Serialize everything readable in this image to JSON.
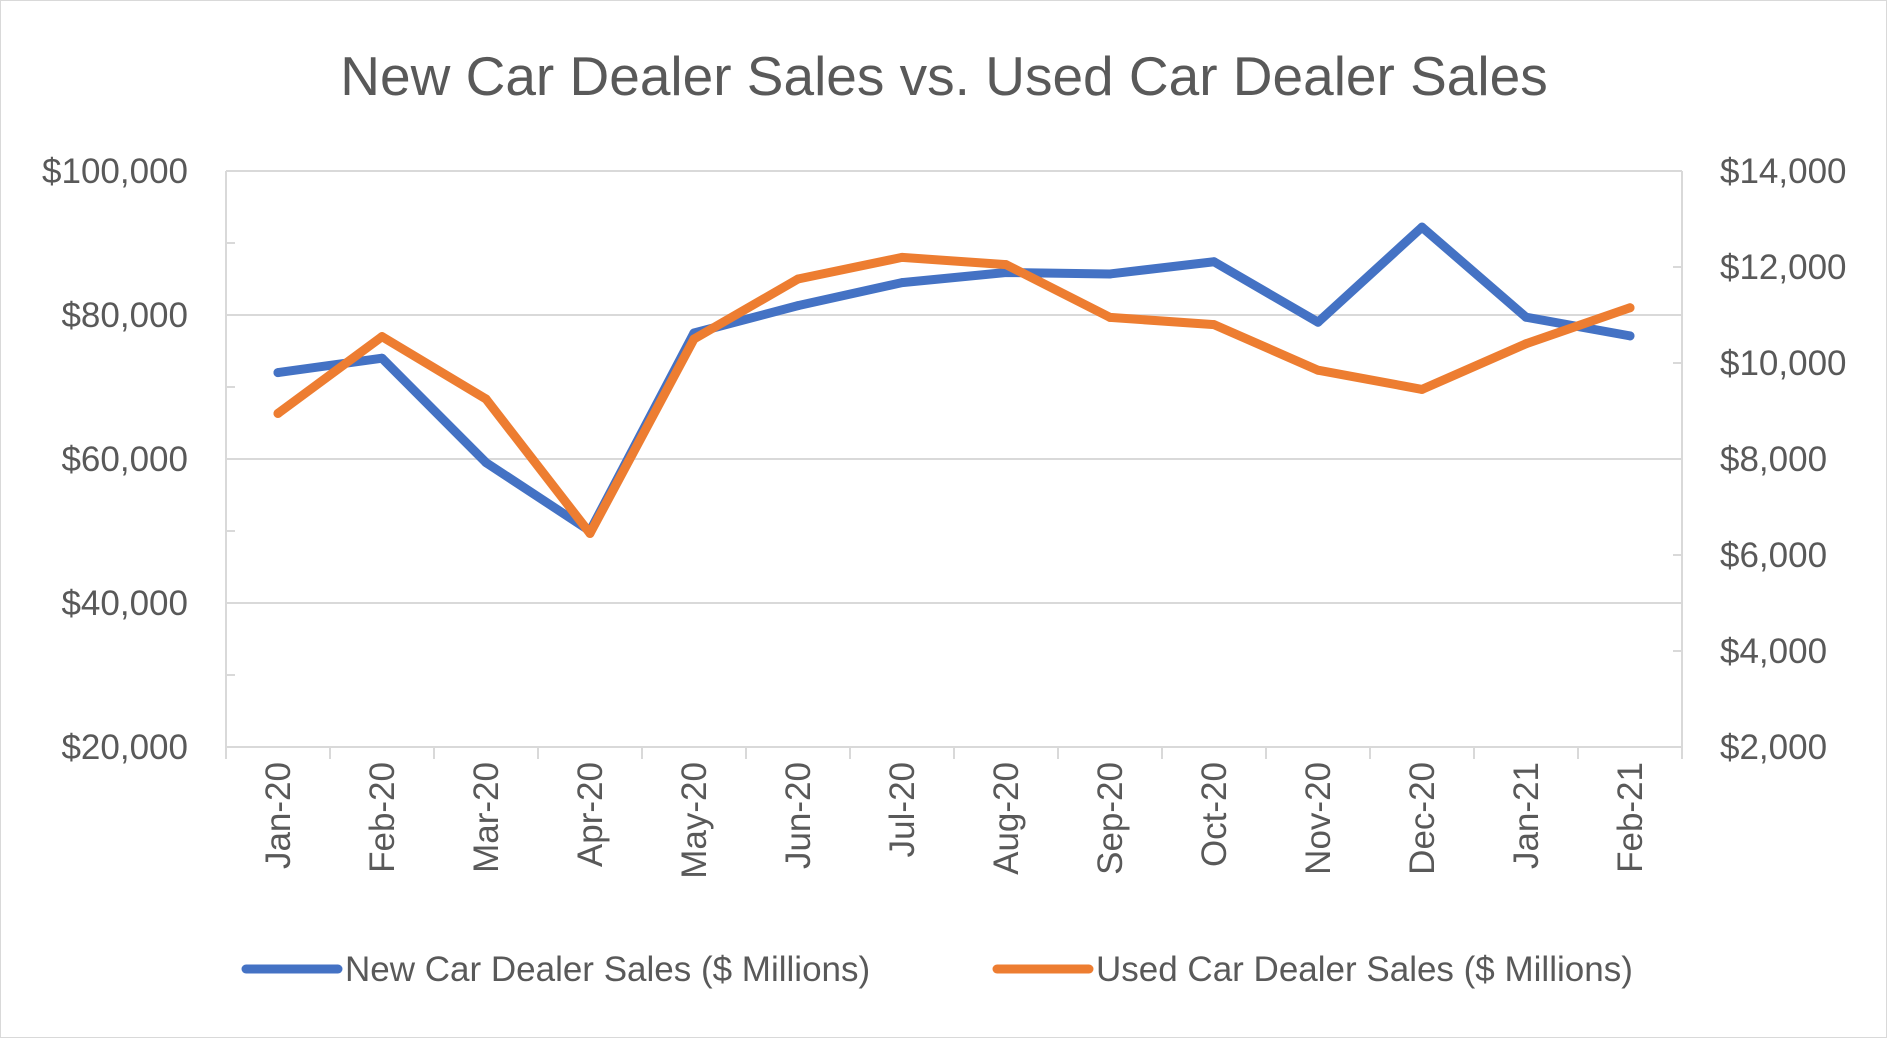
{
  "chart_data": {
    "type": "line",
    "title": "New Car Dealer Sales vs. Used Car Dealer Sales",
    "categories": [
      "Jan-20",
      "Feb-20",
      "Mar-20",
      "Apr-20",
      "May-20",
      "Jun-20",
      "Jul-20",
      "Aug-20",
      "Sep-20",
      "Oct-20",
      "Nov-20",
      "Dec-20",
      "Jan-21",
      "Feb-21"
    ],
    "series": [
      {
        "name": "New Car Dealer Sales ($ Millions)",
        "axis": "left",
        "color": "#4472c4",
        "values": [
          72000,
          74000,
          59500,
          50000,
          77500,
          81300,
          84500,
          85900,
          85700,
          87400,
          79000,
          92200,
          79700,
          77100
        ]
      },
      {
        "name": "Used Car Dealer Sales ($ Millions)",
        "axis": "right",
        "color": "#ed7d31",
        "values": [
          8950,
          10550,
          9250,
          6450,
          10500,
          11750,
          12200,
          12050,
          10950,
          10800,
          9850,
          9450,
          10400,
          11150
        ]
      }
    ],
    "y_left": {
      "min": 20000,
      "max": 100000,
      "ticks": [
        20000,
        40000,
        60000,
        80000,
        100000
      ],
      "tick_labels": [
        "$20,000",
        "$40,000",
        "$60,000",
        "$80,000",
        "$100,000"
      ]
    },
    "y_right": {
      "min": 2000,
      "max": 14000,
      "ticks": [
        2000,
        4000,
        6000,
        8000,
        10000,
        12000,
        14000
      ],
      "tick_labels": [
        "$2,000",
        "$4,000",
        "$6,000",
        "$8,000",
        "$10,000",
        "$12,000",
        "$14,000"
      ]
    },
    "grid": true,
    "legend": "bottom"
  }
}
